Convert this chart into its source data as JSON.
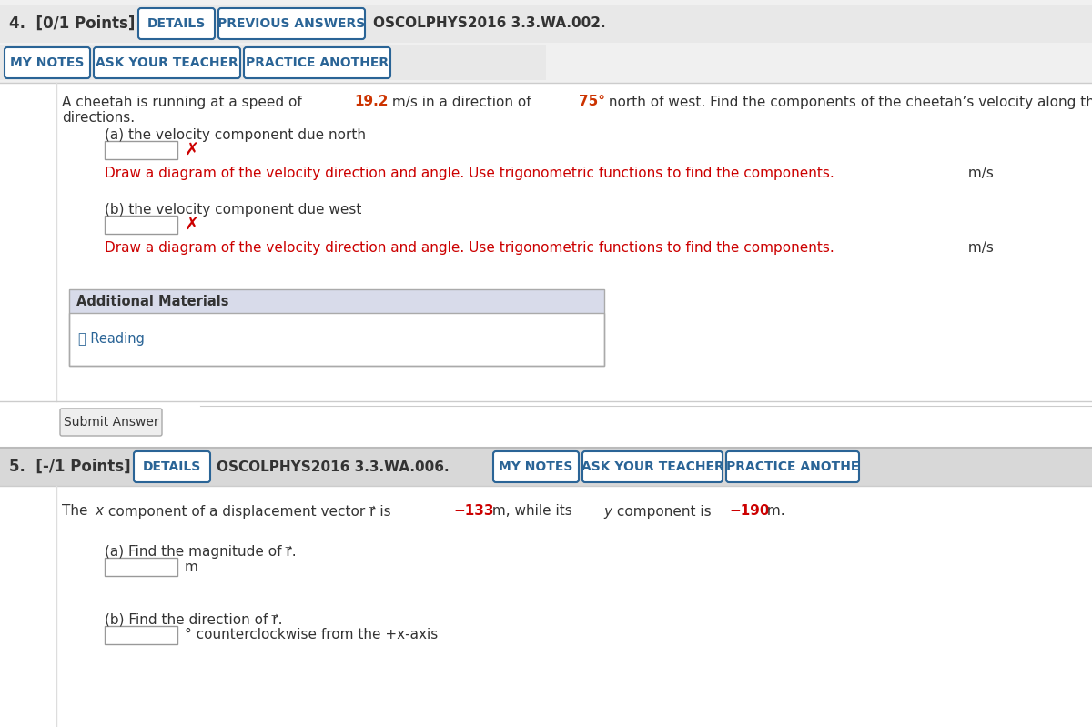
{
  "bg_color": "#f0f0f0",
  "white": "#ffffff",
  "dark_text": "#333333",
  "blue_btn_text": "#2a6496",
  "blue_btn_border": "#2a6496",
  "red_text": "#cc0000",
  "link_blue": "#2a6496",
  "header4_bg": "#e8e8e8",
  "header5_bg": "#d8d8d8",
  "addmat_hdr_bg": "#d8dbea",
  "addmat_body_bg": "#ffffff",
  "q4_label": "4.  [0/1 Points]",
  "q4_btn1": "DETAILS",
  "q4_btn2": "PREVIOUS ANSWERS",
  "q4_code": "OSCOLPHYS2016 3.3.WA.002.",
  "q4_btn3": "MY NOTES",
  "q4_btn4": "ASK YOUR TEACHER",
  "q4_btn5": "PRACTICE ANOTHER",
  "prob_seg1": "A cheetah is running at a speed of ",
  "prob_speed": "19.2",
  "prob_seg2": " m/s in a direction of ",
  "prob_angle": "75°",
  "prob_seg3": " north of west. Find the components of the cheetah’s velocity along the following",
  "prob_line2": "directions.",
  "q4_a_label": "(a) the velocity component due north",
  "q4_a_feedback": "Draw a diagram of the velocity direction and angle. Use trigonometric functions to find the components.",
  "q4_a_unit": "m/s",
  "q4_b_label": "(b) the velocity component due west",
  "q4_b_feedback": "Draw a diagram of the velocity direction and angle. Use trigonometric functions to find the components.",
  "q4_b_unit": "m/s",
  "addmat_title": "Additional Materials",
  "reading_icon": "📖",
  "reading_text": "Reading",
  "submit_btn": "Submit Answer",
  "q5_label": "5.  [-/1 Points]",
  "q5_btn1": "DETAILS",
  "q5_code": "OSCOLPHYS2016 3.3.WA.006.",
  "q5_btn2": "MY NOTES",
  "q5_btn3": "ASK YOUR TEACHER",
  "q5_btn4": "PRACTICE ANOTHE",
  "q5_seg1": "The ",
  "q5_seg2": "x",
  "q5_seg3": " component of a displacement vector r⃗ is ",
  "q5_xval": "−133",
  "q5_seg4": " m, while its ",
  "q5_seg5": "y",
  "q5_seg6": " component is ",
  "q5_yval": "−190",
  "q5_seg7": " m.",
  "q5_a_label": "(a) Find the magnitude of r⃗.",
  "q5_a_unit": "m",
  "q5_b_label": "(b) Find the direction of r⃗.",
  "q5_b_unit": "° counterclockwise from the +x-axis"
}
